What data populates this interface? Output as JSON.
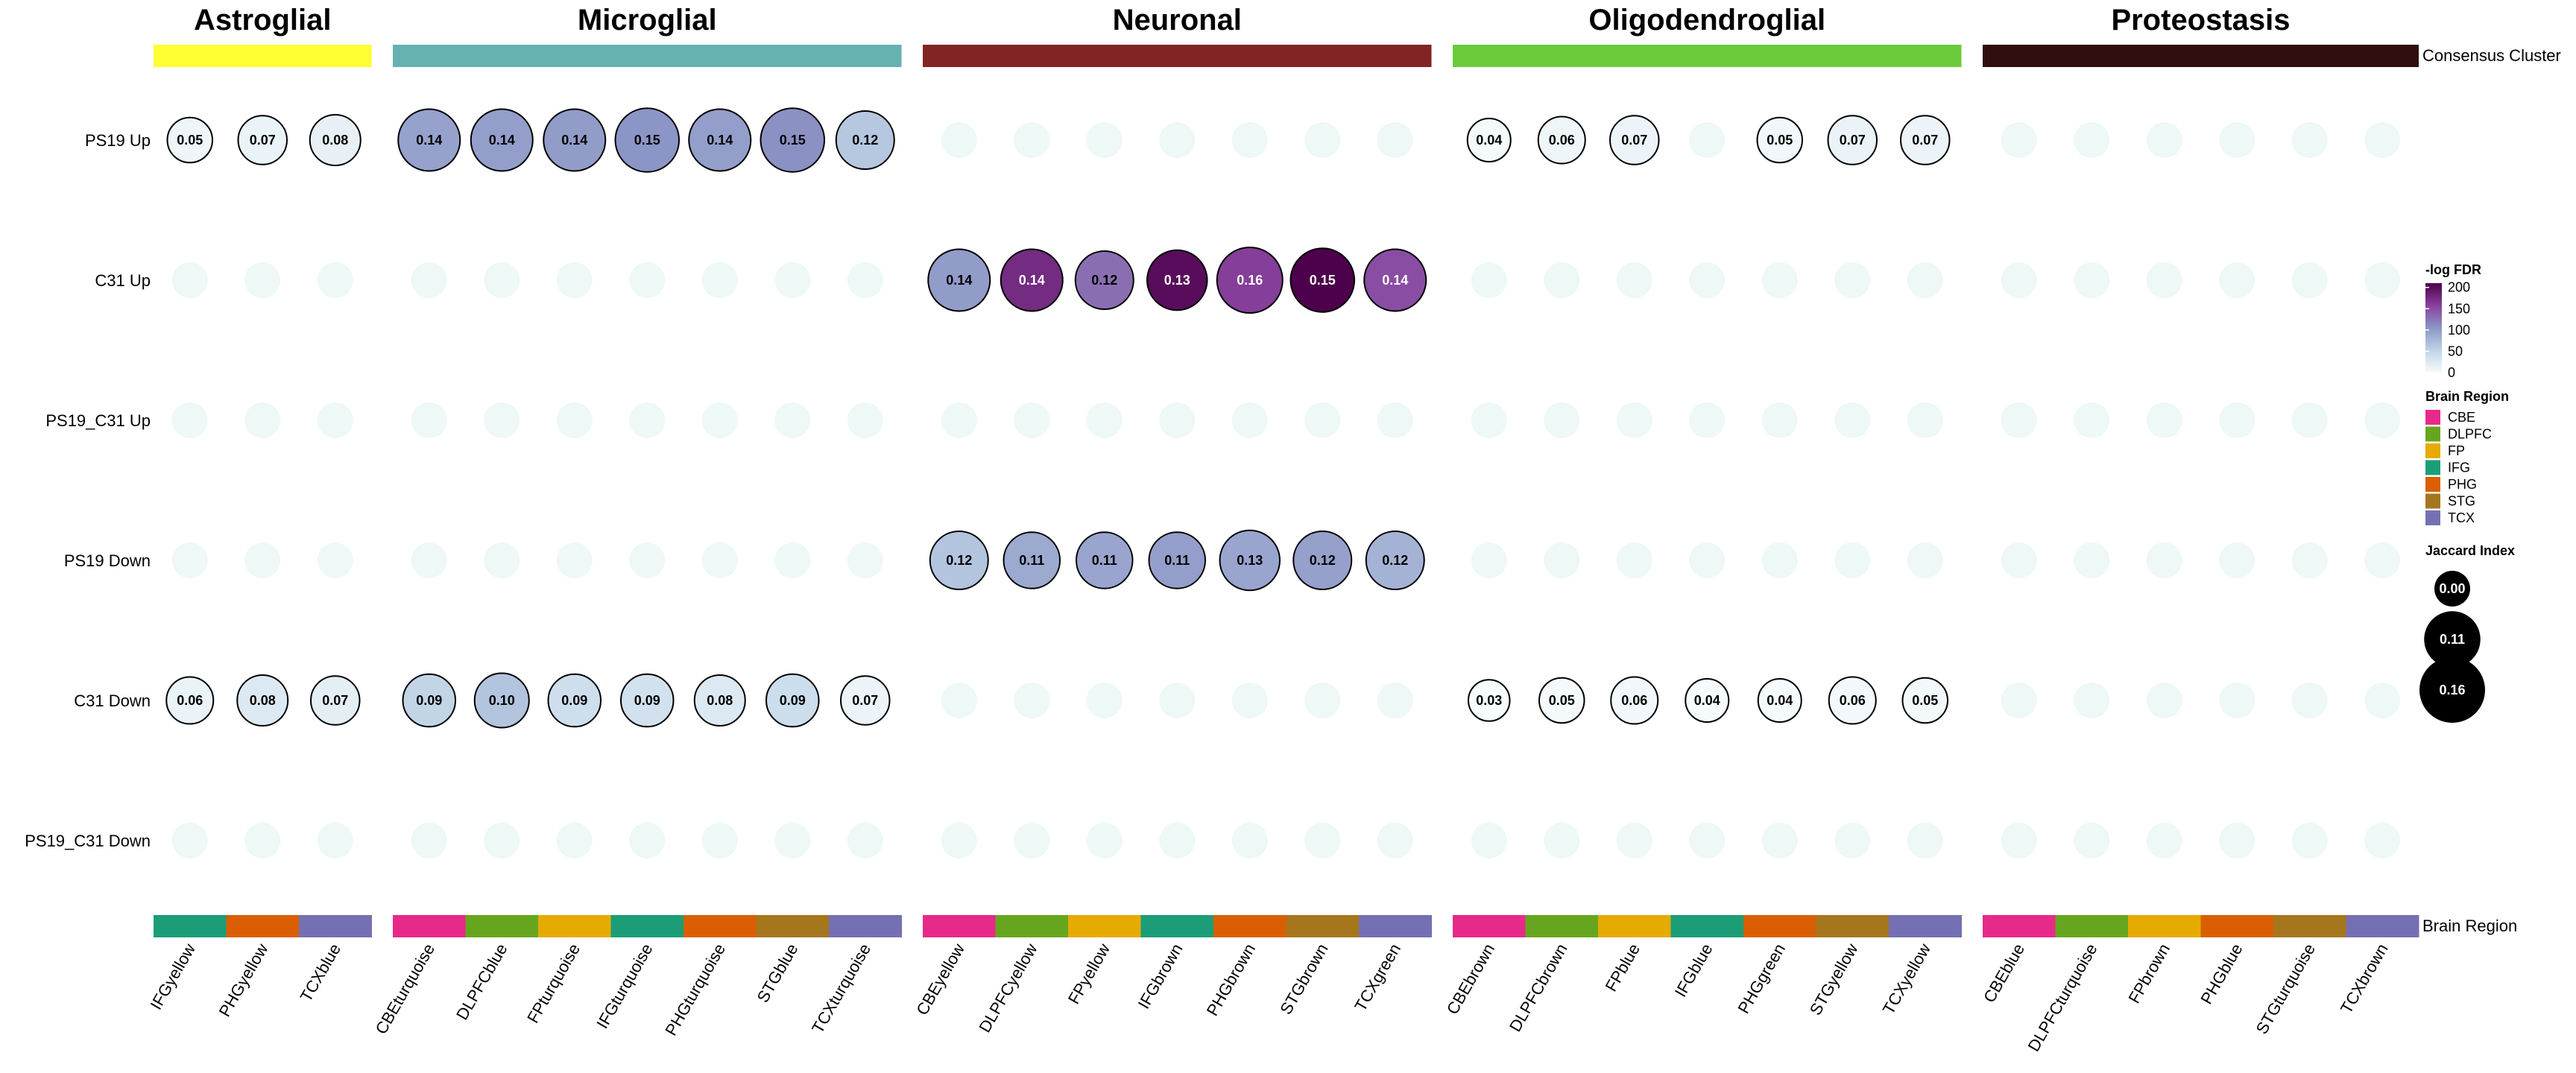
{
  "chart_data": {
    "type": "scatter",
    "clusters": [
      {
        "name": "Astroglial",
        "color": "#FFFF33",
        "columns": [
          {
            "label": "IFGyellow",
            "region": "IFG"
          },
          {
            "label": "PHGyellow",
            "region": "PHG"
          },
          {
            "label": "TCXblue",
            "region": "TCX"
          }
        ]
      },
      {
        "name": "Microglial",
        "color": "#66B2B2",
        "columns": [
          {
            "label": "CBEturquoise",
            "region": "CBE"
          },
          {
            "label": "DLPFCblue",
            "region": "DLPFC"
          },
          {
            "label": "FPturquoise",
            "region": "FP"
          },
          {
            "label": "IFGturquoise",
            "region": "IFG"
          },
          {
            "label": "PHGturquoise",
            "region": "PHG"
          },
          {
            "label": "STGblue",
            "region": "STG"
          },
          {
            "label": "TCXturquoise",
            "region": "TCX"
          }
        ]
      },
      {
        "name": "Neuronal",
        "color": "#832424",
        "columns": [
          {
            "label": "CBEyellow",
            "region": "CBE"
          },
          {
            "label": "DLPFCyellow",
            "region": "DLPFC"
          },
          {
            "label": "FPyellow",
            "region": "FP"
          },
          {
            "label": "IFGbrown",
            "region": "IFG"
          },
          {
            "label": "PHGbrown",
            "region": "PHG"
          },
          {
            "label": "STGbrown",
            "region": "STG"
          },
          {
            "label": "TCXgreen",
            "region": "TCX"
          }
        ]
      },
      {
        "name": "Oligodendroglial",
        "color": "#6CCB3A",
        "columns": [
          {
            "label": "CBEbrown",
            "region": "CBE"
          },
          {
            "label": "DLPFCbrown",
            "region": "DLPFC"
          },
          {
            "label": "FPblue",
            "region": "FP"
          },
          {
            "label": "IFGblue",
            "region": "IFG"
          },
          {
            "label": "PHGgreen",
            "region": "PHG"
          },
          {
            "label": "STGyellow",
            "region": "STG"
          },
          {
            "label": "TCXyellow",
            "region": "TCX"
          }
        ]
      },
      {
        "name": "Proteostasis",
        "color": "#2F0E0E",
        "columns": [
          {
            "label": "CBEblue",
            "region": "CBE"
          },
          {
            "label": "DLPFCturquoise",
            "region": "DLPFC"
          },
          {
            "label": "FPbrown",
            "region": "FP"
          },
          {
            "label": "PHGblue",
            "region": "PHG"
          },
          {
            "label": "STGturquoise",
            "region": "STG"
          },
          {
            "label": "TCXbrown",
            "region": "TCX"
          }
        ]
      }
    ],
    "rows": [
      "PS19 Up",
      "C31 Up",
      "PS19_C31 Up",
      "PS19 Down",
      "C31 Down",
      "PS19_C31 Down"
    ],
    "jaccard": [
      [
        0.05,
        0.07,
        0.08,
        0.14,
        0.14,
        0.14,
        0.15,
        0.14,
        0.15,
        0.12,
        null,
        null,
        null,
        null,
        null,
        null,
        null,
        0.04,
        0.06,
        0.07,
        null,
        0.05,
        0.07,
        0.07,
        null,
        null,
        null,
        null,
        null,
        null
      ],
      [
        null,
        null,
        null,
        null,
        null,
        null,
        null,
        null,
        null,
        null,
        0.14,
        0.14,
        0.12,
        0.13,
        0.16,
        0.15,
        0.14,
        null,
        null,
        null,
        null,
        null,
        null,
        null,
        null,
        null,
        null,
        null,
        null,
        null
      ],
      [
        null,
        null,
        null,
        null,
        null,
        null,
        null,
        null,
        null,
        null,
        null,
        null,
        null,
        null,
        null,
        null,
        null,
        null,
        null,
        null,
        null,
        null,
        null,
        null,
        null,
        null,
        null,
        null,
        null,
        null
      ],
      [
        null,
        null,
        null,
        null,
        null,
        null,
        null,
        null,
        null,
        null,
        0.12,
        0.11,
        0.11,
        0.11,
        0.13,
        0.12,
        0.12,
        null,
        null,
        null,
        null,
        null,
        null,
        null,
        null,
        null,
        null,
        null,
        null,
        null
      ],
      [
        0.06,
        0.08,
        0.07,
        0.09,
        0.1,
        0.09,
        0.09,
        0.08,
        0.09,
        0.07,
        null,
        null,
        null,
        null,
        null,
        null,
        null,
        0.03,
        0.05,
        0.06,
        0.04,
        0.04,
        0.06,
        0.05,
        null,
        null,
        null,
        null,
        null,
        null
      ],
      [
        null,
        null,
        null,
        null,
        null,
        null,
        null,
        null,
        null,
        null,
        null,
        null,
        null,
        null,
        null,
        null,
        null,
        null,
        null,
        null,
        null,
        null,
        null,
        null,
        null,
        null,
        null,
        null,
        null,
        null
      ]
    ],
    "neg_log_fdr": [
      [
        8,
        12,
        15,
        95,
        98,
        100,
        105,
        98,
        108,
        62,
        null,
        null,
        null,
        null,
        null,
        null,
        null,
        3,
        8,
        10,
        null,
        6,
        12,
        10,
        null,
        null,
        null,
        null,
        null,
        null
      ],
      [
        null,
        null,
        null,
        null,
        null,
        null,
        null,
        null,
        null,
        null,
        100,
        175,
        130,
        200,
        160,
        210,
        150,
        null,
        null,
        null,
        null,
        null,
        null,
        null,
        null,
        null,
        null,
        null,
        null,
        null
      ],
      [
        null,
        null,
        null,
        null,
        null,
        null,
        null,
        null,
        null,
        null,
        null,
        null,
        null,
        null,
        null,
        null,
        null,
        null,
        null,
        null,
        null,
        null,
        null,
        null,
        null,
        null,
        null,
        null,
        null,
        null
      ],
      [
        null,
        null,
        null,
        null,
        null,
        null,
        null,
        null,
        null,
        null,
        65,
        88,
        92,
        98,
        92,
        96,
        80,
        null,
        null,
        null,
        null,
        null,
        null,
        null,
        null,
        null,
        null,
        null,
        null,
        null
      ],
      [
        12,
        25,
        18,
        50,
        65,
        38,
        35,
        25,
        40,
        10,
        null,
        null,
        null,
        null,
        null,
        null,
        null,
        0,
        3,
        6,
        1,
        2,
        5,
        4,
        null,
        null,
        null,
        null,
        null,
        null
      ],
      [
        null,
        null,
        null,
        null,
        null,
        null,
        null,
        null,
        null,
        null,
        null,
        null,
        null,
        null,
        null,
        null,
        null,
        null,
        null,
        null,
        null,
        null,
        null,
        null,
        null,
        null,
        null,
        null,
        null,
        null
      ]
    ],
    "empty_color": "#EEF8F6",
    "side_labels": {
      "top": "Consensus Cluster",
      "bottom": "Brain Region"
    },
    "region_colors": {
      "CBE": "#E7298A",
      "DLPFC": "#66A61E",
      "FP": "#E6AB02",
      "IFG": "#1B9E77",
      "PHG": "#D95F02",
      "STG": "#A6761D",
      "TCX": "#7570B3"
    },
    "legend": {
      "fdr_title": "-log FDR",
      "fdr_ticks": [
        200,
        150,
        100,
        50,
        0
      ],
      "fdr_range": [
        0,
        210
      ],
      "fdr_colors": [
        "#F7FCFD",
        "#BFD3E6",
        "#8C96C6",
        "#88419D",
        "#4D004B"
      ],
      "region_title": "Brain Region",
      "regions": [
        "CBE",
        "DLPFC",
        "FP",
        "IFG",
        "PHG",
        "STG",
        "TCX"
      ],
      "jaccard_title": "Jaccard Index",
      "jaccard_examples": [
        0.0,
        0.11,
        0.16
      ]
    }
  }
}
